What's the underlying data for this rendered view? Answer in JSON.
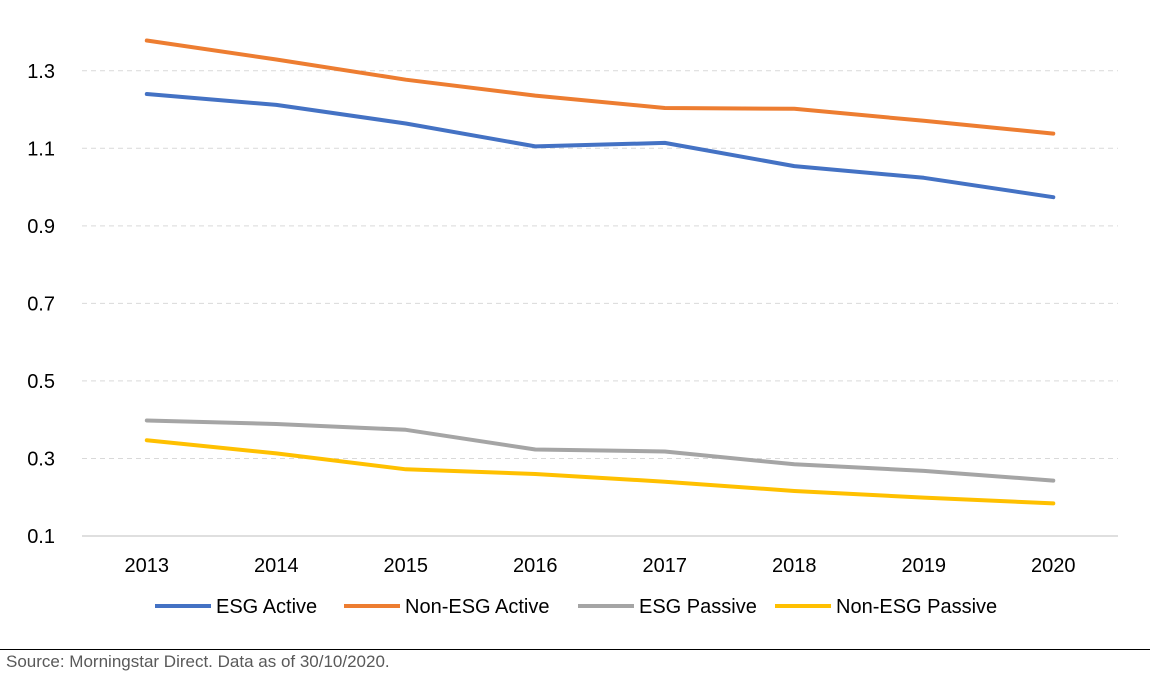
{
  "chart_data": {
    "type": "line",
    "title": "",
    "xlabel": "",
    "ylabel": "",
    "categories": [
      "2013",
      "2014",
      "2015",
      "2016",
      "2017",
      "2018",
      "2019",
      "2020"
    ],
    "ylim": [
      0.1,
      1.4
    ],
    "yticks": [
      "0.1",
      "0.3",
      "0.5",
      "0.7",
      "0.9",
      "1.1",
      "1.3"
    ],
    "grid": "horizontal dashed",
    "legend_position": "bottom",
    "series": [
      {
        "name": "ESG Active",
        "color": "#4472C4",
        "values": [
          1.24,
          1.212,
          1.164,
          1.105,
          1.114,
          1.054,
          1.024,
          0.974
        ]
      },
      {
        "name": "Non-ESG Active",
        "color": "#ED7D31",
        "values": [
          1.378,
          1.329,
          1.277,
          1.236,
          1.204,
          1.202,
          1.171,
          1.138
        ]
      },
      {
        "name": "ESG Passive",
        "color": "#A5A5A5",
        "values": [
          0.398,
          0.389,
          0.374,
          0.323,
          0.318,
          0.285,
          0.268,
          0.243
        ]
      },
      {
        "name": "Non-ESG Passive",
        "color": "#FFC000",
        "values": [
          0.347,
          0.313,
          0.272,
          0.26,
          0.24,
          0.216,
          0.199,
          0.184
        ]
      }
    ]
  },
  "footer": {
    "source": "Source: Morningstar Direct. Data as of 30/10/2020."
  }
}
